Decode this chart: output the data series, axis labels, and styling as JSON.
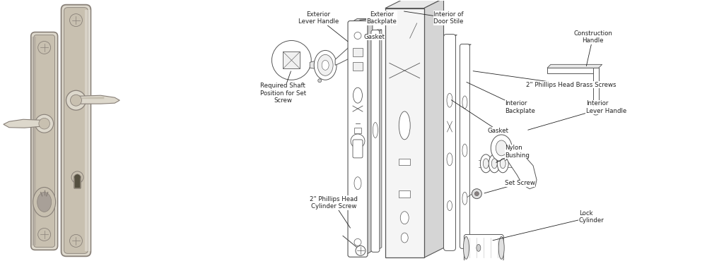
{
  "background_color": "#ffffff",
  "line_color": "#555555",
  "light_gray": "#cccccc",
  "medium_gray": "#aaaaaa",
  "dark_gray": "#444444",
  "nickel": "#c8c0b0",
  "nickel_light": "#ddd8cc",
  "nickel_dark": "#a8a098",
  "nickel_edge": "#888078",
  "annotation_color": "#222222",
  "annotation_fontsize": 6.2,
  "diagram_lc": "#555555",
  "labels": {
    "exterior_lever_handle": "Exterior\nLever Handle",
    "exterior_backplate": "Exterior\nBackplate",
    "gasket_top": "Gasket",
    "interior_of_door_stile": "Interior of\nDoor Stile",
    "construction_handle": "Construction\nHandle",
    "required_shaft": "Required Shaft\nPosition for Set\nScrew",
    "gasket_mid": "Gasket",
    "interior_backplate": "Interior\nBackplate",
    "phillips_brass": "2\" Phillips Head Brass Screws",
    "interior_lever": "Interior\nLever Handle",
    "nylon_bushing": "Nylon\nBushing",
    "set_screw": "Set Screw",
    "lock_cylinder": "Lock\nCylinder",
    "cylinder_screw": "2\" Phillips Head\nCylinder Screw"
  }
}
